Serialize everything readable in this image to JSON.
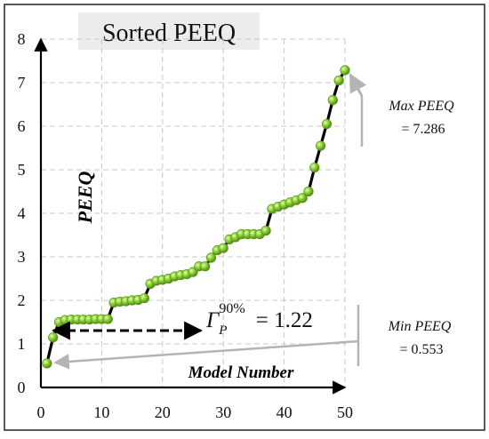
{
  "chart_data": {
    "type": "line",
    "title": "Sorted PEEQ",
    "xlabel": "Model Number",
    "ylabel": "PEEQ",
    "xlim": [
      0,
      50
    ],
    "ylim": [
      0,
      8
    ],
    "xticks": [
      0,
      10,
      20,
      30,
      40,
      50
    ],
    "yticks": [
      0,
      1,
      2,
      3,
      4,
      5,
      6,
      7,
      8
    ],
    "grid": true,
    "series": [
      {
        "x": [
          1,
          2,
          3,
          4,
          5,
          6,
          7,
          8,
          9,
          10,
          11,
          12,
          13,
          14,
          15,
          16,
          17,
          18,
          19,
          20,
          21,
          22,
          23,
          24,
          25,
          26,
          27,
          28,
          29,
          30,
          31,
          32,
          33,
          34,
          35,
          36,
          37,
          38,
          39,
          40,
          41,
          42,
          43,
          44,
          45,
          46,
          47,
          48,
          49,
          50
        ],
        "y": [
          0.553,
          1.15,
          1.5,
          1.55,
          1.56,
          1.56,
          1.56,
          1.56,
          1.57,
          1.57,
          1.57,
          1.95,
          1.97,
          1.98,
          2.0,
          2.01,
          2.05,
          2.38,
          2.45,
          2.47,
          2.5,
          2.55,
          2.58,
          2.6,
          2.65,
          2.78,
          2.78,
          2.98,
          3.15,
          3.2,
          3.4,
          3.45,
          3.52,
          3.52,
          3.52,
          3.52,
          3.6,
          4.1,
          4.15,
          4.2,
          4.25,
          4.3,
          4.35,
          4.5,
          5.05,
          5.55,
          6.05,
          6.6,
          7.05,
          7.286
        ]
      }
    ],
    "annotations": {
      "max_label": "Max PEEQ",
      "max_value": "= 7.286",
      "min_label": "Min PEEQ",
      "min_value": "= 0.553",
      "gamma_symbol": "Γ",
      "gamma_subscript": "P",
      "gamma_superscript": "90%",
      "gamma_value": "= 1.22"
    },
    "colors": {
      "line": "#000000",
      "marker": "#8fd43a",
      "grid": "#c8c8c8",
      "arrow": "#b4b4b4",
      "title_box": "#ececec"
    }
  }
}
